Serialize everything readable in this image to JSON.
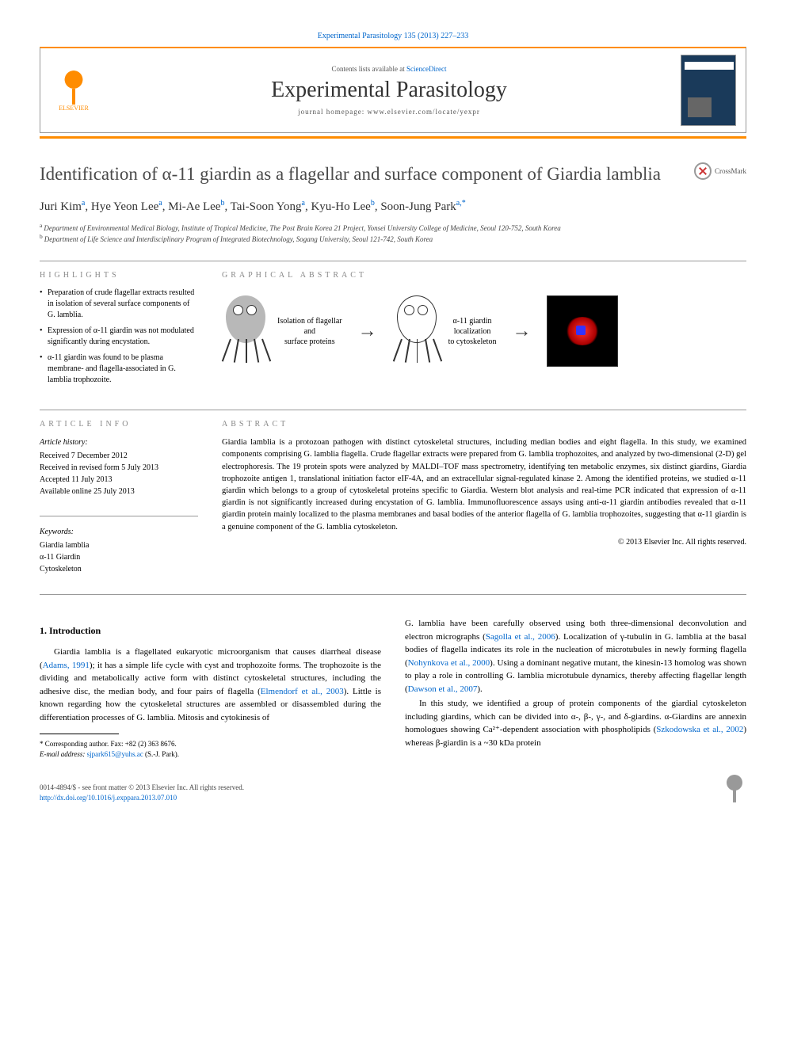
{
  "journal": {
    "citation": "Experimental Parasitology 135 (2013) 227–233",
    "contents_prefix": "Contents lists available at ",
    "contents_link": "ScienceDirect",
    "name": "Experimental Parasitology",
    "homepage_prefix": "journal homepage: ",
    "homepage_url": "www.elsevier.com/locate/yexpr",
    "publisher": "ELSEVIER"
  },
  "article": {
    "title": "Identification of α-11 giardin as a flagellar and surface component of Giardia lamblia",
    "crossmark": "CrossMark",
    "authors_html": "Juri Kim<sup>a</sup>, Hye Yeon Lee<sup>a</sup>, Mi-Ae Lee<sup>b</sup>, Tai-Soon Yong<sup>a</sup>, Kyu-Ho Lee<sup>b</sup>, Soon-Jung Park<sup>a,*</sup>",
    "affiliations": [
      {
        "sup": "a",
        "text": "Department of Environmental Medical Biology, Institute of Tropical Medicine, The Post Brain Korea 21 Project, Yonsei University College of Medicine, Seoul 120-752, South Korea"
      },
      {
        "sup": "b",
        "text": "Department of Life Science and Interdisciplinary Program of Integrated Biotechnology, Sogang University, Seoul 121-742, South Korea"
      }
    ]
  },
  "highlights": {
    "label": "HIGHLIGHTS",
    "items": [
      "Preparation of crude flagellar extracts resulted in isolation of several surface components of G. lamblia.",
      "Expression of α-11 giardin was not modulated significantly during encystation.",
      "α-11 giardin was found to be plasma membrane- and flagella-associated in G. lamblia trophozoite."
    ]
  },
  "graphical_abstract": {
    "label": "GRAPHICAL ABSTRACT",
    "step1": "Isolation of flagellar\nand\nsurface proteins",
    "step2": "α-11 giardin\nlocalization\nto cytoskeleton"
  },
  "article_info": {
    "label": "ARTICLE INFO",
    "history_heading": "Article history:",
    "history": [
      "Received 7 December 2012",
      "Received in revised form 5 July 2013",
      "Accepted 11 July 2013",
      "Available online 25 July 2013"
    ],
    "keywords_heading": "Keywords:",
    "keywords": [
      "Giardia lamblia",
      "α-11 Giardin",
      "Cytoskeleton"
    ]
  },
  "abstract": {
    "label": "ABSTRACT",
    "text": "Giardia lamblia is a protozoan pathogen with distinct cytoskeletal structures, including median bodies and eight flagella. In this study, we examined components comprising G. lamblia flagella. Crude flagellar extracts were prepared from G. lamblia trophozoites, and analyzed by two-dimensional (2-D) gel electrophoresis. The 19 protein spots were analyzed by MALDI–TOF mass spectrometry, identifying ten metabolic enzymes, six distinct giardins, Giardia trophozoite antigen 1, translational initiation factor eIF-4A, and an extracellular signal-regulated kinase 2. Among the identified proteins, we studied α-11 giardin which belongs to a group of cytoskeletal proteins specific to Giardia. Western blot analysis and real-time PCR indicated that expression of α-11 giardin is not significantly increased during encystation of G. lamblia. Immunofluorescence assays using anti-α-11 giardin antibodies revealed that α-11 giardin protein mainly localized to the plasma membranes and basal bodies of the anterior flagella of G. lamblia trophozoites, suggesting that α-11 giardin is a genuine component of the G. lamblia cytoskeleton.",
    "copyright": "© 2013 Elsevier Inc. All rights reserved."
  },
  "body": {
    "intro_heading": "1. Introduction",
    "para1_pre": "Giardia lamblia is a flagellated eukaryotic microorganism that causes diarrheal disease (",
    "para1_cite1": "Adams, 1991",
    "para1_mid": "); it has a simple life cycle with cyst and trophozoite forms. The trophozoite is the dividing and metabolically active form with distinct cytoskeletal structures, including the adhesive disc, the median body, and four pairs of flagella (",
    "para1_cite2": "Elmendorf et al., 2003",
    "para1_end": "). Little is known regarding how the cytoskeletal structures are assembled or disassembled during the differentiation processes of G. lamblia. Mitosis and cytokinesis of",
    "para2_pre": "G. lamblia have been carefully observed using both three-dimensional deconvolution and electron micrographs (",
    "para2_cite1": "Sagolla et al., 2006",
    "para2_mid": "). Localization of γ-tubulin in G. lamblia at the basal bodies of flagella indicates its role in the nucleation of microtubules in newly forming flagella (",
    "para2_cite2": "Nohynkova et al., 2000",
    "para2_mid2": "). Using a dominant negative mutant, the kinesin-13 homolog was shown to play a role in controlling G. lamblia microtubule dynamics, thereby affecting flagellar length (",
    "para2_cite3": "Dawson et al., 2007",
    "para2_end": ").",
    "para3_pre": "In this study, we identified a group of protein components of the giardial cytoskeleton including giardins, which can be divided into α-, β-, γ-, and δ-giardins. α-Giardins are annexin homologues showing Ca²⁺-dependent association with phospholipids (",
    "para3_cite1": "Szkodowska et al., 2002",
    "para3_end": ") whereas β-giardin is a ~30 kDa protein"
  },
  "footnote": {
    "corr": "* Corresponding author. Fax: +82 (2) 363 8676.",
    "email_label": "E-mail address: ",
    "email": "sjpark615@yuhs.ac",
    "email_suffix": " (S.-J. Park)."
  },
  "footer": {
    "issn_line": "0014-4894/$ - see front matter © 2013 Elsevier Inc. All rights reserved.",
    "doi": "http://dx.doi.org/10.1016/j.exppara.2013.07.010"
  },
  "colors": {
    "link": "#0066cc",
    "accent": "#ff8c00",
    "text": "#000000",
    "muted": "#888888"
  }
}
